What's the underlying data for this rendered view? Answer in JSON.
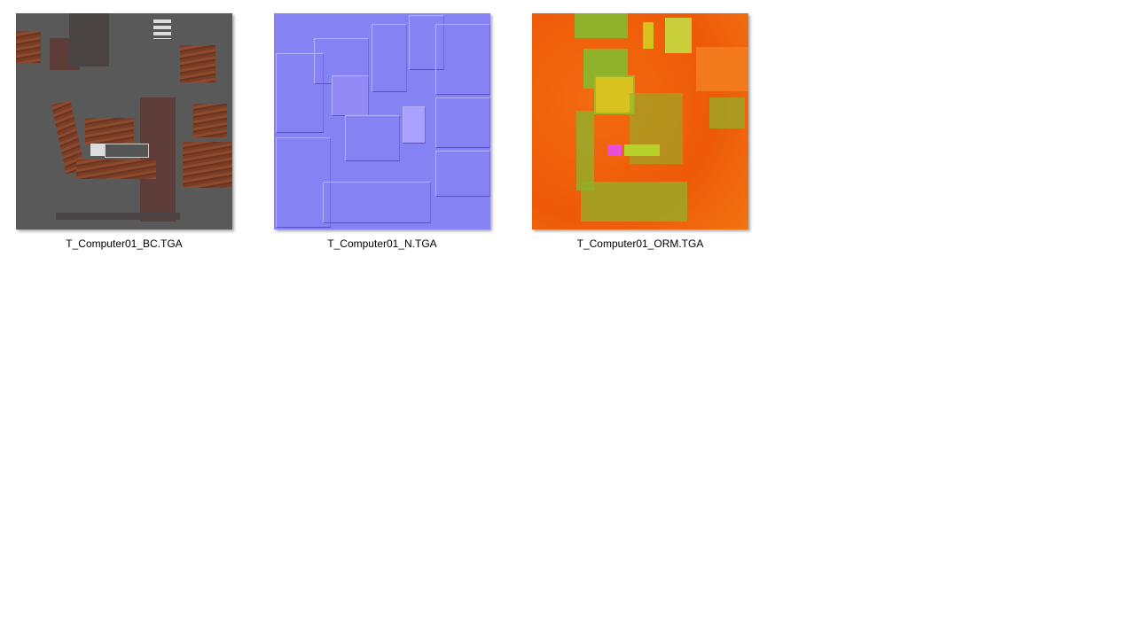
{
  "files": [
    {
      "name": "T_Computer01_BC.TGA",
      "thumbnail": "base-color-texture"
    },
    {
      "name": "T_Computer01_N.TGA",
      "thumbnail": "normal-map-texture"
    },
    {
      "name": "T_Computer01_ORM.TGA",
      "thumbnail": "orm-texture"
    }
  ]
}
